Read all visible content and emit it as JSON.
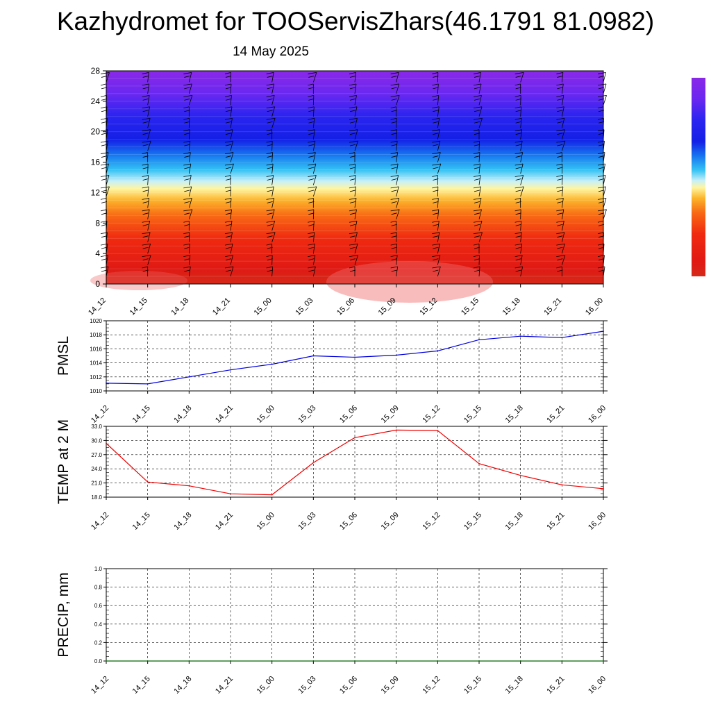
{
  "title": "Kazhydromet for TOOServisZhars(46.1791 81.0982)",
  "subtitle": "14 May 2025",
  "chart_data": [
    {
      "type": "heatmap",
      "name": "temperature-profile",
      "x_ticks": [
        "14_12",
        "14_15",
        "14_18",
        "14_21",
        "15_00",
        "15_03",
        "15_06",
        "15_09",
        "15_12",
        "15_15",
        "15_18",
        "15_21",
        "16_00"
      ],
      "y_ticks": [
        "0",
        "4",
        "8",
        "12",
        "16",
        "20",
        "24",
        "28"
      ],
      "ylim": [
        0,
        28
      ],
      "color_stops": [
        {
          "level": 0,
          "color": "#d42a1a"
        },
        {
          "level": 2,
          "color": "#e01a14"
        },
        {
          "level": 6,
          "color": "#f02a10"
        },
        {
          "level": 9,
          "color": "#f86a14"
        },
        {
          "level": 11,
          "color": "#fcb42a"
        },
        {
          "level": 12.5,
          "color": "#fff5a0"
        },
        {
          "level": 13.5,
          "color": "#c8f0f8"
        },
        {
          "level": 15,
          "color": "#34c2f4"
        },
        {
          "level": 17,
          "color": "#1674f0"
        },
        {
          "level": 19,
          "color": "#1420e6"
        },
        {
          "level": 22,
          "color": "#2a24f0"
        },
        {
          "level": 25,
          "color": "#6a28f0"
        },
        {
          "level": 28,
          "color": "#8a28e8"
        }
      ]
    },
    {
      "type": "line",
      "name": "pmsl",
      "ylabel": "PMSL",
      "x": [
        "14_12",
        "14_15",
        "14_18",
        "14_21",
        "15_00",
        "15_03",
        "15_06",
        "15_09",
        "15_12",
        "15_15",
        "15_18",
        "15_21",
        "16_00"
      ],
      "values": [
        1011.1,
        1011.0,
        1012.0,
        1013.0,
        1013.8,
        1015.0,
        1014.8,
        1015.1,
        1015.7,
        1017.3,
        1017.8,
        1017.6,
        1018.5
      ],
      "ylim": [
        1010,
        1020
      ],
      "y_ticks": [
        "1010",
        "1012",
        "1014",
        "1016",
        "1018",
        "1020"
      ],
      "color": "#0000dd",
      "grid": true
    },
    {
      "type": "line",
      "name": "temp-2m",
      "ylabel": "TEMP at 2 M",
      "x": [
        "14_12",
        "14_15",
        "14_18",
        "14_21",
        "15_00",
        "15_03",
        "15_06",
        "15_09",
        "15_12",
        "15_15",
        "15_18",
        "15_21",
        "16_00"
      ],
      "values": [
        29.4,
        21.2,
        20.4,
        18.7,
        18.5,
        25.3,
        30.6,
        32.2,
        32.1,
        25.1,
        22.6,
        20.6,
        19.8
      ],
      "ylim": [
        18,
        33
      ],
      "y_ticks": [
        "18.0",
        "21.0",
        "24.0",
        "27.0",
        "30.0",
        "33.0"
      ],
      "color": "#ee0000",
      "grid": true
    },
    {
      "type": "line",
      "name": "precip",
      "ylabel": "PRECIP, mm",
      "x": [
        "14_12",
        "14_15",
        "14_18",
        "14_21",
        "15_00",
        "15_03",
        "15_06",
        "15_09",
        "15_12",
        "15_15",
        "15_18",
        "15_21",
        "16_00"
      ],
      "values": [
        0,
        0,
        0,
        0,
        0,
        0,
        0,
        0,
        0,
        0,
        0,
        0,
        0
      ],
      "ylim": [
        0,
        1
      ],
      "y_ticks": [
        "0.0",
        "0.2",
        "0.4",
        "0.6",
        "0.8",
        "1.0"
      ],
      "color": "#006400",
      "grid": true
    }
  ]
}
